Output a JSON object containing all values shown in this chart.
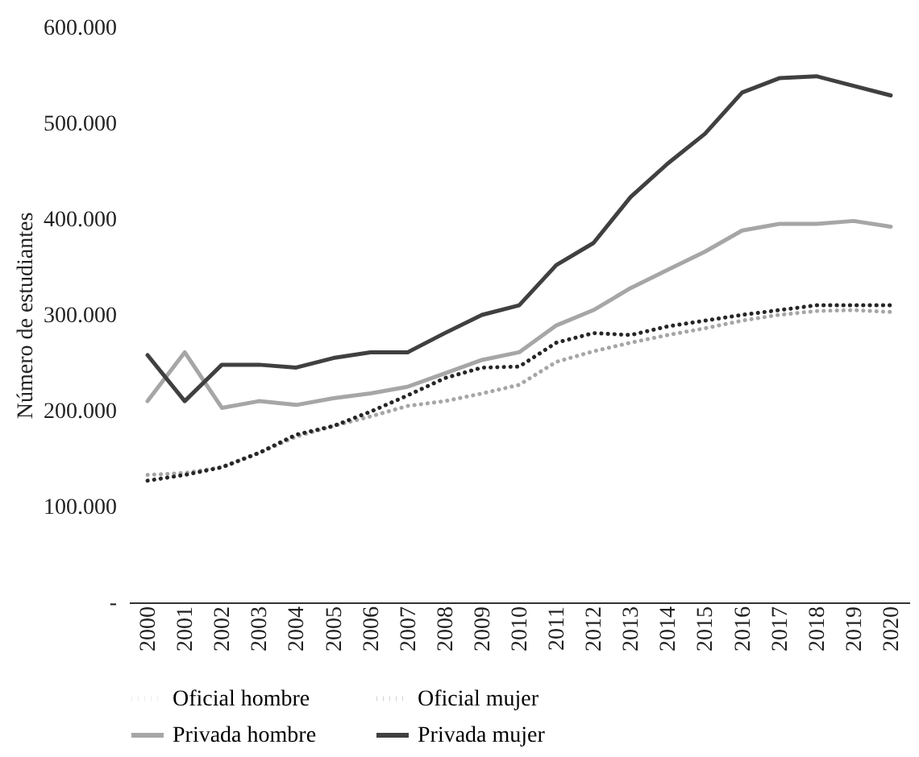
{
  "chart_data": {
    "type": "line",
    "ylabel": "Número de estudiantes",
    "categories": [
      "2000",
      "2001",
      "2002",
      "2003",
      "2004",
      "2005",
      "2006",
      "2007",
      "2008",
      "2009",
      "2010",
      "2011",
      "2012",
      "2013",
      "2014",
      "2015",
      "2016",
      "2017",
      "2018",
      "2019",
      "2020"
    ],
    "series": [
      {
        "name": "Oficial hombre",
        "color": "#a6a6a6",
        "line_style": "dotted",
        "values": [
          133000,
          135000,
          141000,
          156000,
          173000,
          184000,
          194000,
          205000,
          210000,
          218000,
          227000,
          251000,
          262000,
          271000,
          279000,
          286000,
          294000,
          300000,
          304000,
          305000,
          303000
        ]
      },
      {
        "name": "Oficial mujer",
        "color": "#262626",
        "line_style": "dotted",
        "values": [
          127000,
          133000,
          141000,
          156000,
          175000,
          184000,
          199000,
          216000,
          234000,
          245000,
          246000,
          271000,
          281000,
          279000,
          288000,
          294000,
          300000,
          305000,
          310000,
          310000,
          310000
        ]
      },
      {
        "name": "Privada hombre",
        "color": "#a6a6a6",
        "line_style": "solid",
        "values": [
          210000,
          261000,
          203000,
          210000,
          206000,
          213000,
          218000,
          225000,
          239000,
          253000,
          261000,
          289000,
          305000,
          328000,
          347000,
          366000,
          388000,
          395000,
          395000,
          398000,
          392000
        ]
      },
      {
        "name": "Privada mujer",
        "color": "#404040",
        "line_style": "solid",
        "values": [
          258000,
          210000,
          248000,
          248000,
          245000,
          255000,
          261000,
          261000,
          281000,
          300000,
          310000,
          352000,
          375000,
          423000,
          458000,
          489000,
          532000,
          547000,
          549000,
          539000,
          529000
        ]
      }
    ],
    "ylim": [
      0,
      600000
    ],
    "yticks": [
      {
        "value": 0,
        "label": "-"
      },
      {
        "value": 100000,
        "label": "100.000"
      },
      {
        "value": 200000,
        "label": "200.000"
      },
      {
        "value": 300000,
        "label": "300.000"
      },
      {
        "value": 400000,
        "label": "400.000"
      },
      {
        "value": 500000,
        "label": "500.000"
      },
      {
        "value": 600000,
        "label": "600.000"
      }
    ],
    "grid": false,
    "legend": "bottom"
  }
}
